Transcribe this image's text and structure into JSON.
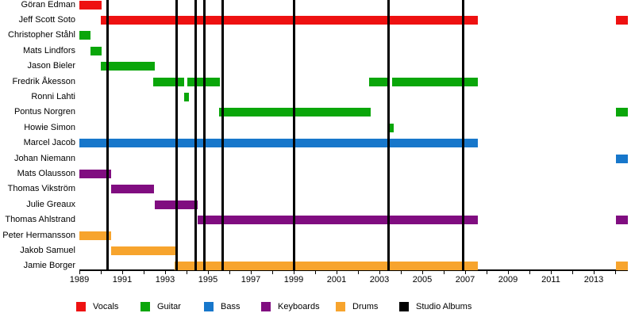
{
  "chart_data": {
    "type": "bar",
    "subtype": "band-member-timeline-gantt",
    "title": "",
    "xlabel": "",
    "ylabel": "",
    "x_axis": {
      "min_year": 1989,
      "max_year": 2014.6,
      "tick_interval_years": 1,
      "label_interval_years": 2,
      "tick_labels": [
        "1989",
        "1991",
        "1993",
        "1995",
        "1997",
        "1999",
        "2001",
        "2003",
        "2005",
        "2007",
        "2009",
        "2011",
        "2013"
      ]
    },
    "grid": "off",
    "legend_position": "bottom",
    "legend": [
      {
        "label": "Vocals",
        "color": "#ee1111"
      },
      {
        "label": "Guitar",
        "color": "#0aa60a"
      },
      {
        "label": "Bass",
        "color": "#1777cb"
      },
      {
        "label": "Keyboards",
        "color": "#800d80"
      },
      {
        "label": "Drums",
        "color": "#f7a42d"
      },
      {
        "label": "Studio Albums",
        "color": "#000000"
      }
    ],
    "members": [
      {
        "name": "Göran Edman",
        "role": "Vocals",
        "spans": [
          [
            1989.0,
            1990.05
          ]
        ]
      },
      {
        "name": "Jeff Scott Soto",
        "role": "Vocals",
        "spans": [
          [
            1990.0,
            2007.6
          ],
          [
            2014.05,
            2014.6
          ]
        ]
      },
      {
        "name": "Christopher Ståhl",
        "role": "Guitar",
        "spans": [
          [
            1989.0,
            1989.5
          ]
        ]
      },
      {
        "name": "Mats Lindfors",
        "role": "Guitar",
        "spans": [
          [
            1989.5,
            1990.05
          ]
        ]
      },
      {
        "name": "Jason Bieler",
        "role": "Guitar",
        "spans": [
          [
            1990.0,
            1992.5
          ]
        ]
      },
      {
        "name": "Fredrik Åkesson",
        "role": "Guitar",
        "spans": [
          [
            1992.45,
            1993.9
          ],
          [
            1994.05,
            1995.55
          ],
          [
            2002.5,
            2003.45
          ],
          [
            2003.6,
            2007.6
          ]
        ]
      },
      {
        "name": "Ronni Lahti",
        "role": "Guitar",
        "spans": [
          [
            1993.88,
            1994.12
          ]
        ]
      },
      {
        "name": "Pontus Norgren",
        "role": "Guitar",
        "spans": [
          [
            1995.5,
            2002.58
          ],
          [
            2014.05,
            2014.6
          ]
        ]
      },
      {
        "name": "Howie Simon",
        "role": "Guitar",
        "spans": [
          [
            2003.47,
            2003.66
          ]
        ]
      },
      {
        "name": "Marcel Jacob",
        "role": "Bass",
        "spans": [
          [
            1989.0,
            2007.6
          ]
        ]
      },
      {
        "name": "Johan Niemann",
        "role": "Bass",
        "spans": [
          [
            2014.05,
            2014.6
          ]
        ]
      },
      {
        "name": "Mats Olausson",
        "role": "Keyboards",
        "spans": [
          [
            1989.0,
            1990.47
          ]
        ]
      },
      {
        "name": "Thomas Vikström",
        "role": "Keyboards",
        "spans": [
          [
            1990.48,
            1992.5
          ]
        ]
      },
      {
        "name": "Julie Greaux",
        "role": "Keyboards",
        "spans": [
          [
            1992.5,
            1994.53
          ]
        ]
      },
      {
        "name": "Thomas Ahlstrand",
        "role": "Keyboards",
        "spans": [
          [
            1994.5,
            2007.6
          ],
          [
            2014.05,
            2014.6
          ]
        ]
      },
      {
        "name": "Peter Hermansson",
        "role": "Drums",
        "spans": [
          [
            1989.0,
            1990.48
          ]
        ]
      },
      {
        "name": "Jakob Samuel",
        "role": "Drums",
        "spans": [
          [
            1990.48,
            1993.52
          ]
        ]
      },
      {
        "name": "Jamie Borger",
        "role": "Drums",
        "spans": [
          [
            1993.45,
            2007.6
          ],
          [
            2014.05,
            2014.6
          ]
        ]
      }
    ],
    "studio_album_lines_years": [
      1990.3,
      1993.53,
      1994.42,
      1994.83,
      1995.69,
      1999.02,
      2003.44,
      2006.89
    ]
  }
}
